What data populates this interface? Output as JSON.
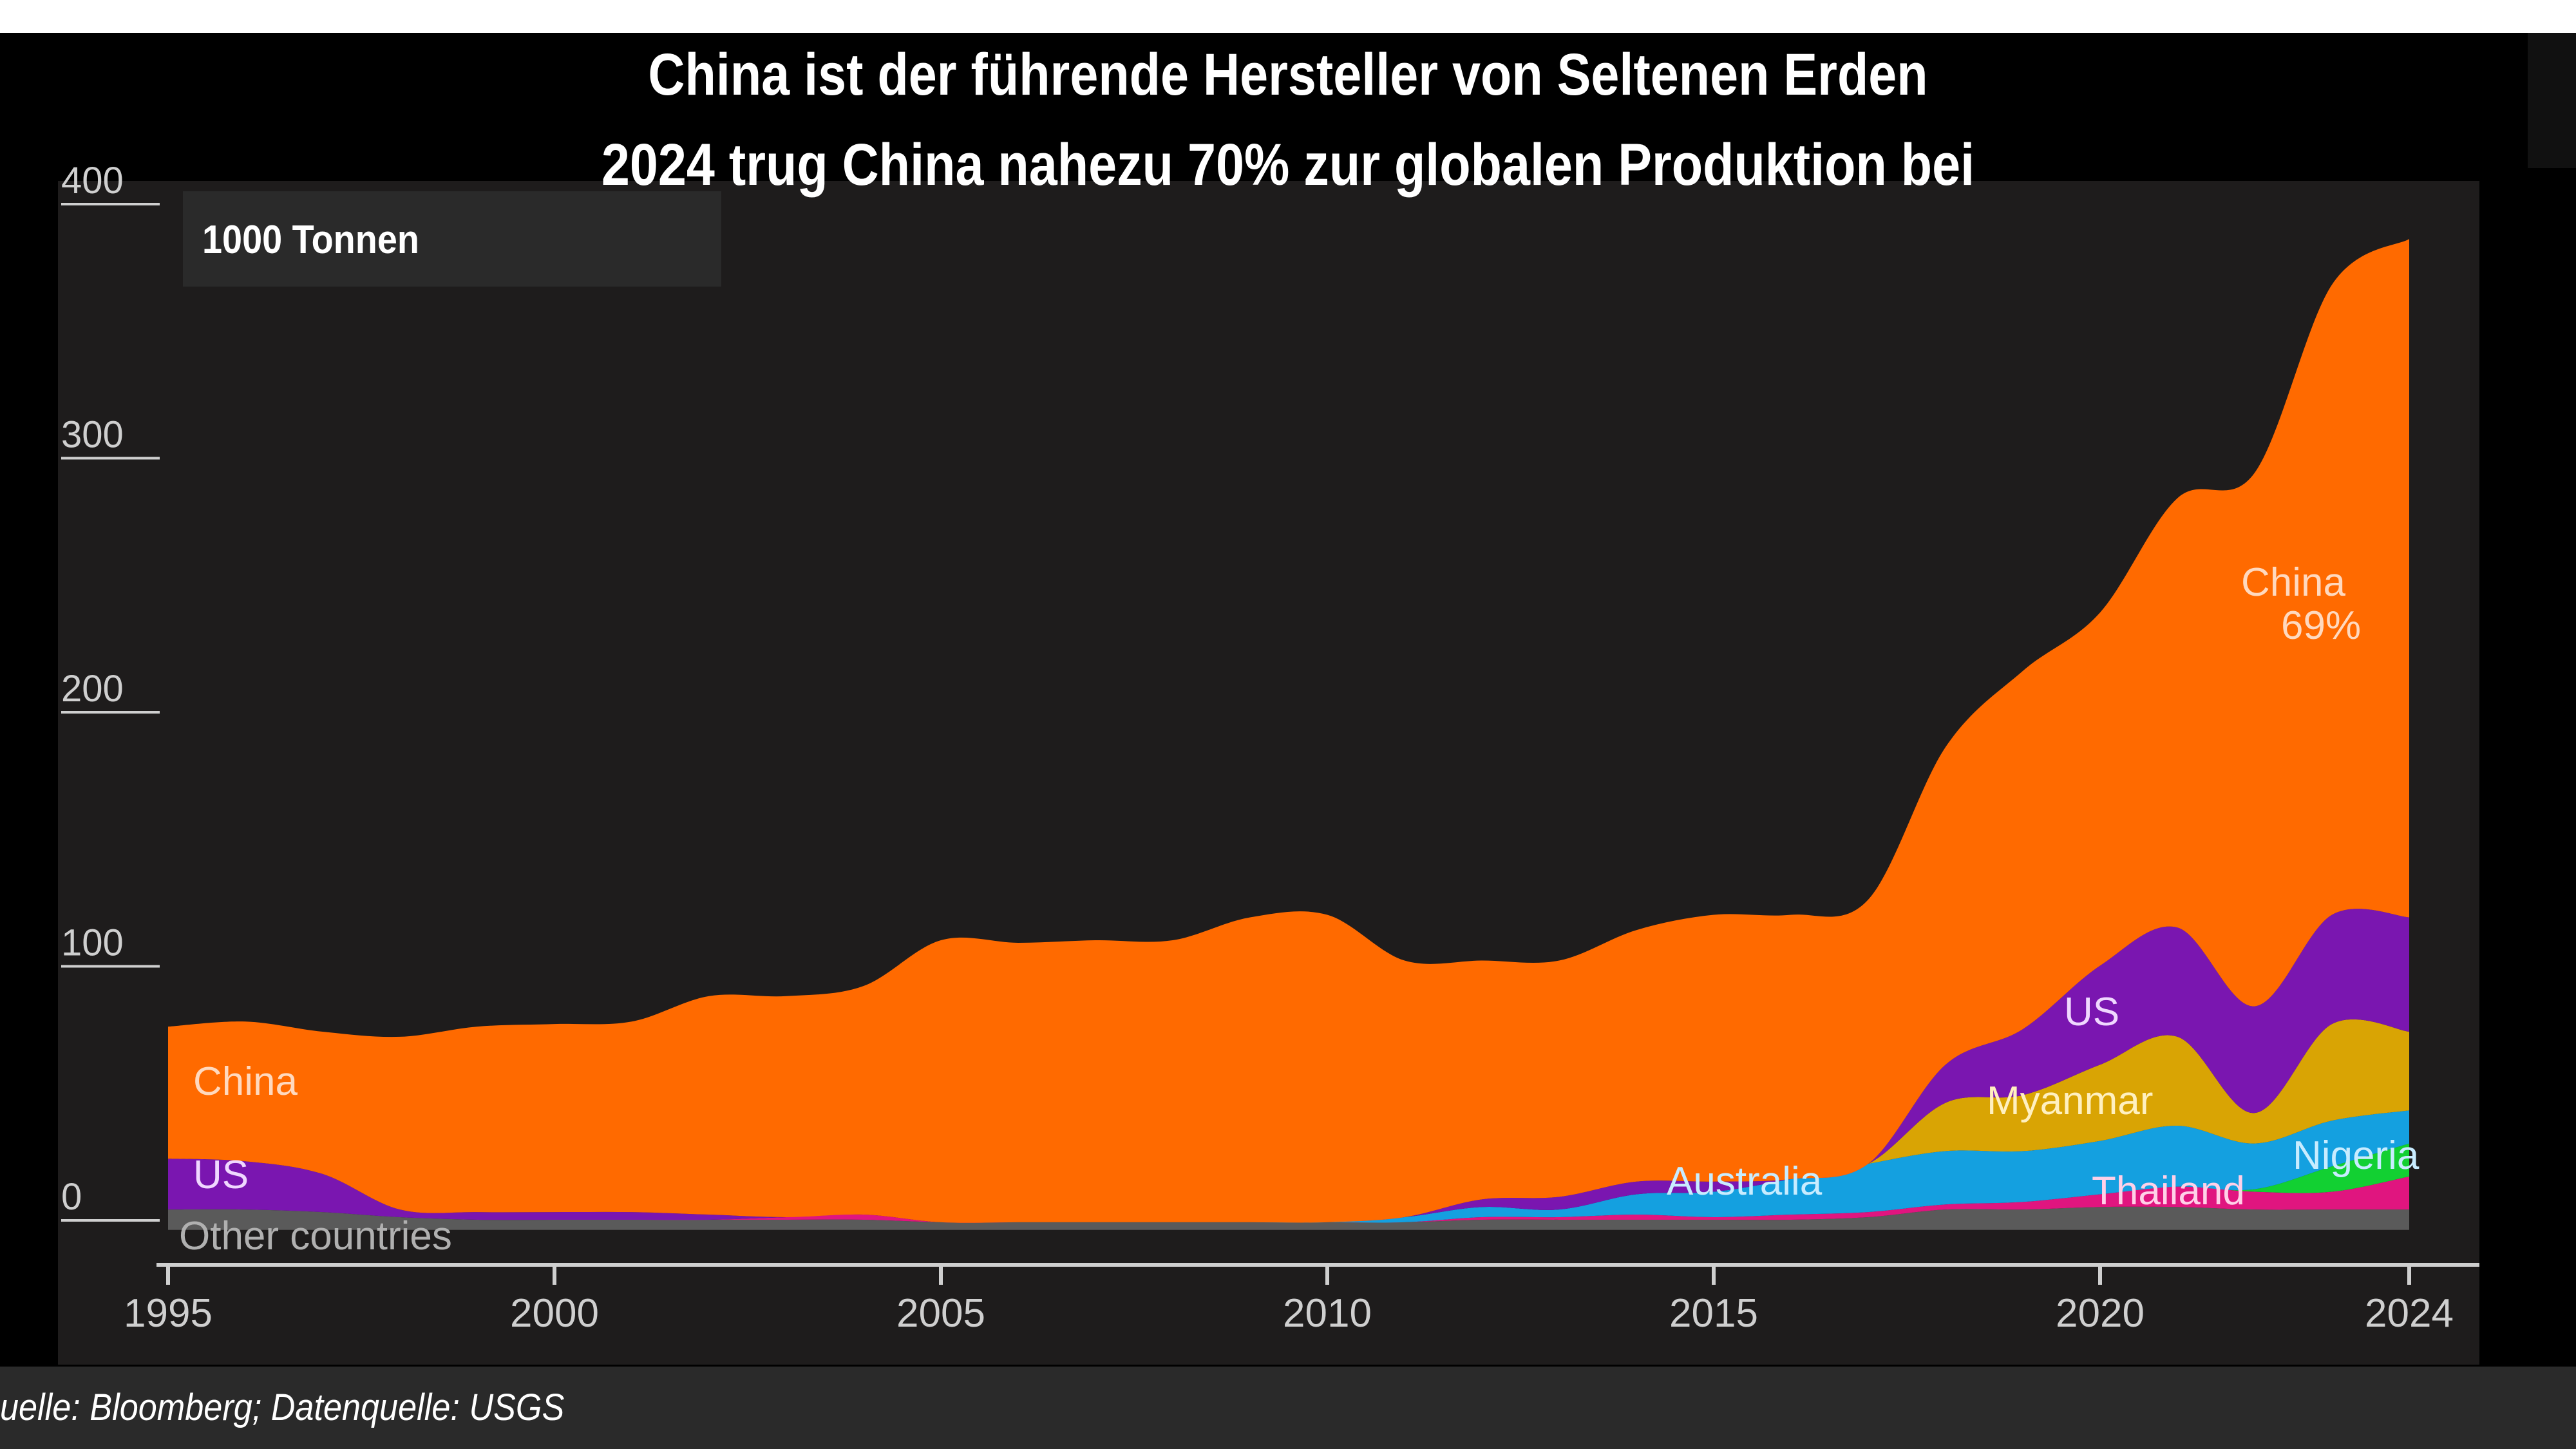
{
  "header": {
    "title_line1": "China ist der führende Hersteller von Seltenen Erden",
    "title_line2": "2024 trug China  nahezu 70% zur globalen Produktion bei"
  },
  "footer": {
    "source": "uelle: Bloomberg; Datenquelle: USGS"
  },
  "chart_data": {
    "type": "area",
    "stacked": true,
    "unit_label": "1000 Tonnen",
    "ylim": [
      0,
      400
    ],
    "yticks": [
      "0",
      "100",
      "200",
      "300",
      "400"
    ],
    "ytick_values": [
      0,
      100,
      200,
      300,
      400
    ],
    "xticks": [
      "1995",
      "2000",
      "2005",
      "2010",
      "2015",
      "2020",
      "2024"
    ],
    "xtick_values": [
      1995,
      2000,
      2005,
      2010,
      2015,
      2020,
      2024
    ],
    "x": [
      1995,
      1996,
      1997,
      1998,
      1999,
      2000,
      2001,
      2002,
      2003,
      2004,
      2005,
      2006,
      2007,
      2008,
      2009,
      2010,
      2011,
      2012,
      2013,
      2014,
      2015,
      2016,
      2017,
      2018,
      2019,
      2020,
      2021,
      2022,
      2023,
      2024
    ],
    "series": [
      {
        "name": "Other countries",
        "color": "#5a5a5a",
        "values": [
          8,
          8,
          7,
          5,
          4,
          4,
          4,
          4,
          4,
          4,
          3,
          3,
          3,
          3,
          3,
          3,
          3,
          4,
          4,
          4,
          4,
          4,
          5,
          8,
          8,
          9,
          9,
          8,
          8,
          8
        ]
      },
      {
        "name": "Thailand",
        "color": "#e0157f",
        "values": [
          0,
          0,
          0,
          0,
          0,
          0,
          0,
          0,
          1,
          2,
          0,
          0,
          0,
          0,
          0,
          0,
          0,
          1,
          1,
          2,
          1,
          2,
          2,
          2,
          3,
          5,
          8,
          7,
          7,
          13
        ]
      },
      {
        "name": "Nigeria",
        "color": "#12d032",
        "values": [
          0,
          0,
          0,
          0,
          0,
          0,
          0,
          0,
          0,
          0,
          0,
          0,
          0,
          0,
          0,
          0,
          0,
          0,
          0,
          0,
          0,
          0,
          0,
          0,
          0,
          0,
          0,
          1,
          10,
          13
        ]
      },
      {
        "name": "Australia",
        "color": "#14a0e0",
        "values": [
          0,
          0,
          0,
          0,
          0,
          0,
          0,
          0,
          0,
          0,
          0,
          0,
          0,
          0,
          0,
          0,
          2,
          4,
          3,
          8,
          10,
          14,
          19,
          21,
          20,
          21,
          24,
          18,
          18,
          13
        ]
      },
      {
        "name": "Myanmar",
        "color": "#d9a404",
        "values": [
          0,
          0,
          0,
          0,
          0,
          0,
          0,
          0,
          0,
          0,
          0,
          0,
          0,
          0,
          0,
          0,
          0,
          0,
          0,
          0,
          0,
          0,
          0,
          19,
          22,
          30,
          35,
          12,
          38,
          31
        ]
      },
      {
        "name": "US",
        "color": "#7a16b0",
        "values": [
          20,
          19,
          15,
          3,
          3,
          3,
          3,
          2,
          0,
          0,
          0,
          0,
          0,
          0,
          0,
          0,
          0,
          3,
          5,
          5,
          4,
          0,
          0,
          15,
          26,
          39,
          43,
          42,
          43,
          45
        ]
      },
      {
        "name": "China",
        "color": "#ff6a00",
        "values": [
          52,
          55,
          56,
          68,
          73,
          74,
          75,
          86,
          87,
          90,
          111,
          110,
          111,
          111,
          120,
          121,
          101,
          94,
          93,
          99,
          105,
          104,
          104,
          125,
          141,
          139,
          169,
          210,
          248,
          267
        ]
      }
    ],
    "labels": {
      "china_left": "China",
      "us_left": "US",
      "other": "Other countries",
      "china_right": "China",
      "china_share": "69%",
      "us_right": "US",
      "myanmar": "Myanmar",
      "australia": "Australia",
      "thailand": "Thailand",
      "nigeria": "Nigeria"
    }
  }
}
